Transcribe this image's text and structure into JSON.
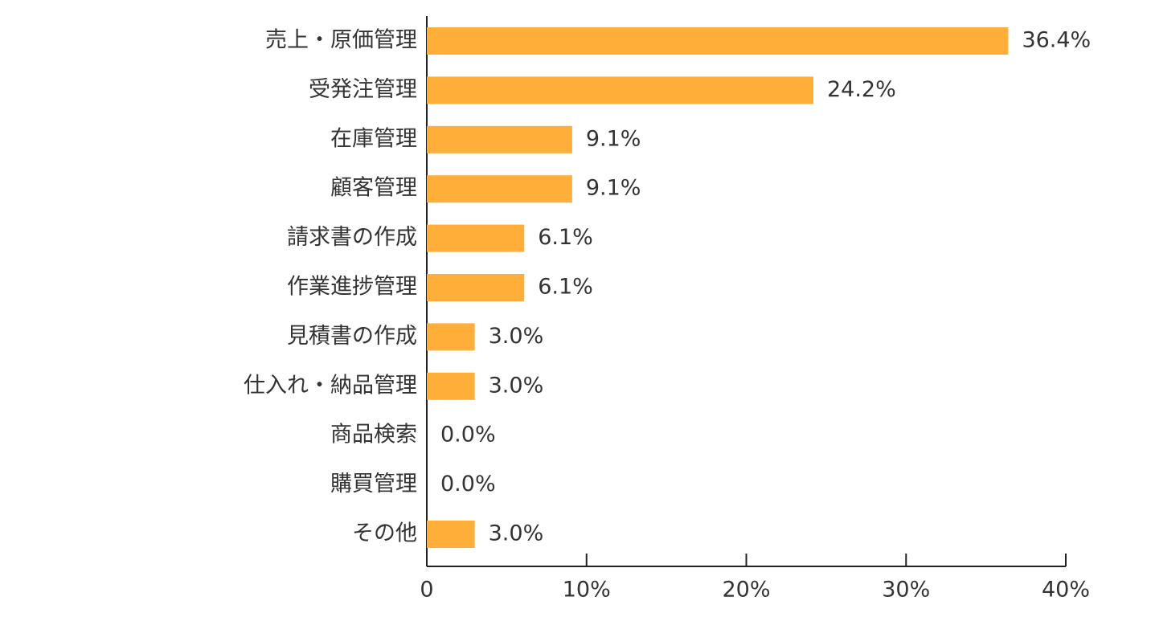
{
  "chart_data": {
    "type": "hbar",
    "categories": [
      "売上・原価管理",
      "受発注管理",
      "在庫管理",
      "顧客管理",
      "請求書の作成",
      "作業進捗管理",
      "見積書の作成",
      "仕入れ・納品管理",
      "商品検索",
      "購買管理",
      "その他"
    ],
    "values": [
      36.4,
      24.2,
      9.1,
      9.1,
      6.1,
      6.1,
      3.0,
      3.0,
      0.0,
      0.0,
      3.0
    ],
    "value_labels": [
      "36.4%",
      "24.2%",
      "9.1%",
      "9.1%",
      "6.1%",
      "6.1%",
      "3.0%",
      "3.0%",
      "0.0%",
      "0.0%",
      "3.0%"
    ],
    "color": "#ffae3a",
    "xlim": [
      0,
      40
    ],
    "xticks": [
      0,
      {
        "value": 10,
        "label": "10%"
      },
      {
        "value": 20,
        "label": "20%"
      },
      {
        "value": 30,
        "label": "30%"
      },
      {
        "value": 40,
        "label": "40%"
      }
    ]
  }
}
